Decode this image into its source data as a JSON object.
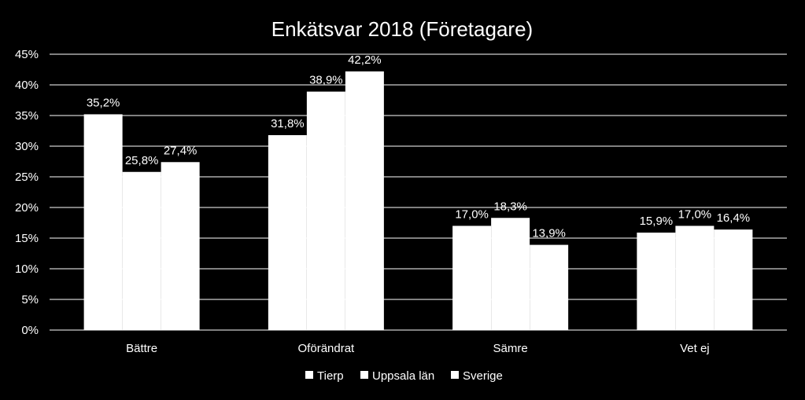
{
  "chart_data": {
    "type": "bar",
    "title": "Enkätsvar 2018 (Företagare)",
    "categories": [
      "Bättre",
      "Oförändrat",
      "Sämre",
      "Vet ej"
    ],
    "series": [
      {
        "name": "Tierp",
        "values": [
          35.2,
          31.8,
          17.0,
          15.9
        ],
        "labels": [
          "35,2%",
          "31,8%",
          "17,0%",
          "15,9%"
        ]
      },
      {
        "name": "Uppsala län",
        "values": [
          25.8,
          38.9,
          18.3,
          17.0
        ],
        "labels": [
          "25,8%",
          "38,9%",
          "18,3%",
          "17,0%"
        ]
      },
      {
        "name": "Sverige",
        "values": [
          27.4,
          42.2,
          13.9,
          16.4
        ],
        "labels": [
          "27,4%",
          "42,2%",
          "13,9%",
          "16,4%"
        ]
      }
    ],
    "ylim": [
      0,
      45
    ],
    "yticks": [
      "0%",
      "5%",
      "10%",
      "15%",
      "20%",
      "25%",
      "30%",
      "35%",
      "40%",
      "45%"
    ],
    "grid": true,
    "legend_position": "bottom",
    "colors": {
      "background": "#000000",
      "bars": "#ffffff",
      "grid": "#ffffff",
      "text": "#ffffff"
    }
  }
}
